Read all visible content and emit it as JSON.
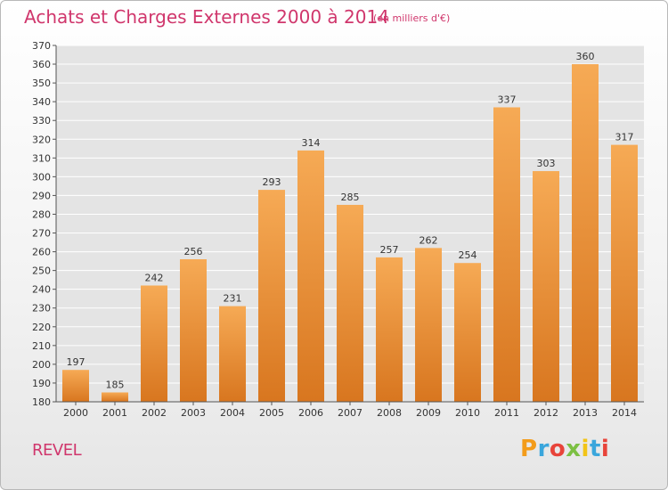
{
  "header": {
    "title": "Achats et Charges Externes 2000 à 2014",
    "subtitle": "(en milliers d'€)"
  },
  "footer": {
    "place": "REVEL",
    "logo_text": "Proxiti",
    "logo_colors": [
      "#f39c1a",
      "#3aa6dc",
      "#e8443a",
      "#7cc043",
      "#f2c417",
      "#3aa6dc",
      "#e8443a"
    ]
  },
  "colors": {
    "title": "#d0366c",
    "bar_top": "#f6aa55",
    "bar_bottom": "#d8761f",
    "grid": "#ffffff",
    "plot_bg": "#e4e4e4"
  },
  "chart_data": {
    "type": "bar",
    "title": "Achats et Charges Externes 2000 à 2014",
    "subtitle": "(en milliers d'€)",
    "xlabel": "",
    "ylabel": "",
    "categories": [
      "2000",
      "2001",
      "2002",
      "2003",
      "2004",
      "2005",
      "2006",
      "2007",
      "2008",
      "2009",
      "2010",
      "2011",
      "2012",
      "2013",
      "2014"
    ],
    "values": [
      197,
      185,
      242,
      256,
      231,
      293,
      314,
      285,
      257,
      262,
      254,
      337,
      303,
      360,
      317
    ],
    "ylim": [
      180,
      370
    ],
    "ytick_step": 10,
    "grid": true,
    "data_labels": true
  }
}
